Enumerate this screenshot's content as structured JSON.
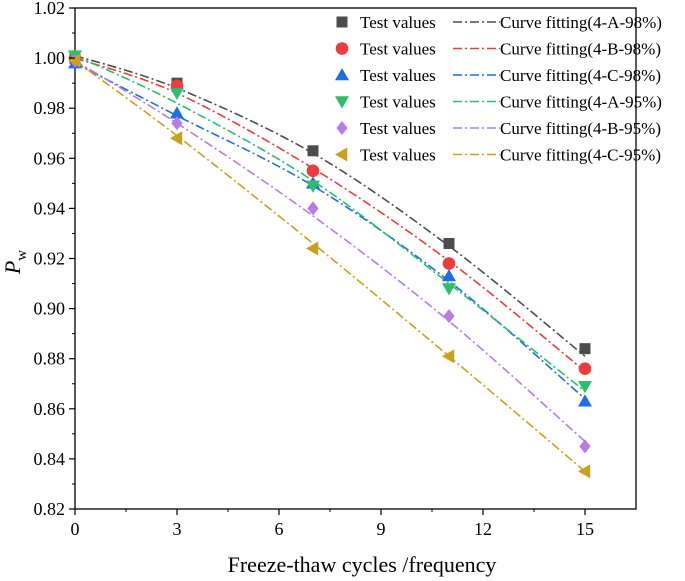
{
  "chart_data": {
    "type": "scatter",
    "title": "",
    "xlabel": "Freeze-thaw cycles /frequency",
    "ylabel_main": "P",
    "ylabel_sub": "w",
    "xlim": [
      0,
      16.5
    ],
    "ylim": [
      0.82,
      1.02
    ],
    "xticks": [
      "0",
      "3",
      "6",
      "9",
      "12",
      "15"
    ],
    "yticks": [
      "0.82",
      "0.84",
      "0.86",
      "0.88",
      "0.90",
      "0.92",
      "0.94",
      "0.96",
      "0.98",
      "1.00",
      "1.02"
    ],
    "grid": false,
    "legend_position": "top-right",
    "series": [
      {
        "marker_label": "Test values",
        "name": "Curve fitting(4-A-98%)",
        "marker": "square",
        "color": "#4d4d4d",
        "x": [
          0,
          3,
          7,
          11,
          15
        ],
        "values": [
          1.0,
          0.99,
          0.963,
          0.926,
          0.884
        ],
        "fit": [
          1.001,
          0.988,
          0.962,
          0.925,
          0.881
        ]
      },
      {
        "marker_label": "Test values",
        "name": "Curve fitting(4-B-98%)",
        "marker": "circle",
        "color": "#ee3b3b",
        "x": [
          0,
          3,
          7,
          11,
          15
        ],
        "values": [
          1.0,
          0.989,
          0.955,
          0.918,
          0.876
        ],
        "fit": [
          1.0,
          0.986,
          0.956,
          0.919,
          0.875
        ]
      },
      {
        "marker_label": "Test values",
        "name": "Curve fitting(4-C-98%)",
        "marker": "triangle-up",
        "color": "#1f6fe0",
        "x": [
          0,
          3,
          7,
          11,
          15
        ],
        "values": [
          0.998,
          0.978,
          0.95,
          0.913,
          0.863
        ],
        "fit": [
          0.998,
          0.977,
          0.949,
          0.911,
          0.864
        ]
      },
      {
        "marker_label": "Test values",
        "name": "Curve fitting(4-A-95%)",
        "marker": "triangle-down",
        "color": "#2dbf6c",
        "x": [
          0,
          3,
          7,
          11,
          15
        ],
        "values": [
          1.001,
          0.986,
          0.949,
          0.908,
          0.869
        ],
        "fit": [
          1.001,
          0.982,
          0.951,
          0.91,
          0.867
        ]
      },
      {
        "marker_label": "Test values",
        "name": "Curve fitting(4-B-95%)",
        "marker": "diamond",
        "color": "#b97be6",
        "x": [
          0,
          3,
          7,
          11,
          15
        ],
        "values": [
          0.999,
          0.974,
          0.94,
          0.897,
          0.845
        ],
        "fit": [
          0.999,
          0.974,
          0.937,
          0.895,
          0.847
        ]
      },
      {
        "marker_label": "Test values",
        "name": "Curve fitting(4-C-95%)",
        "marker": "triangle-left",
        "color": "#c9a11c",
        "x": [
          0,
          3,
          7,
          11,
          15
        ],
        "values": [
          0.999,
          0.968,
          0.924,
          0.881,
          0.835
        ],
        "fit": [
          0.999,
          0.969,
          0.926,
          0.881,
          0.835
        ]
      }
    ]
  }
}
